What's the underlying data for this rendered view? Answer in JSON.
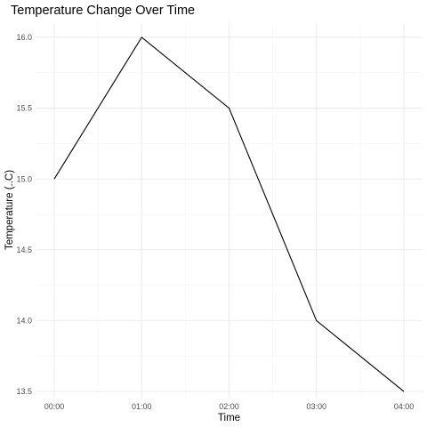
{
  "chart_data": {
    "type": "line",
    "title": "Temperature Change Over Time",
    "xlabel": "Time",
    "ylabel": "Temperature (..C)",
    "categories": [
      "00:00",
      "01:00",
      "02:00",
      "03:00",
      "04:00"
    ],
    "values": [
      15.0,
      16.0,
      15.5,
      14.0,
      13.5
    ],
    "ylim": [
      13.45,
      16.1
    ],
    "yticks": [
      13.5,
      14.0,
      14.5,
      15.0,
      15.5,
      16.0
    ],
    "ytick_labels": [
      "13.5",
      "14.0",
      "14.5",
      "15.0",
      "15.5",
      "16.0"
    ],
    "grid": true,
    "line_color": "#000000",
    "grid_color": "#ebebeb"
  }
}
